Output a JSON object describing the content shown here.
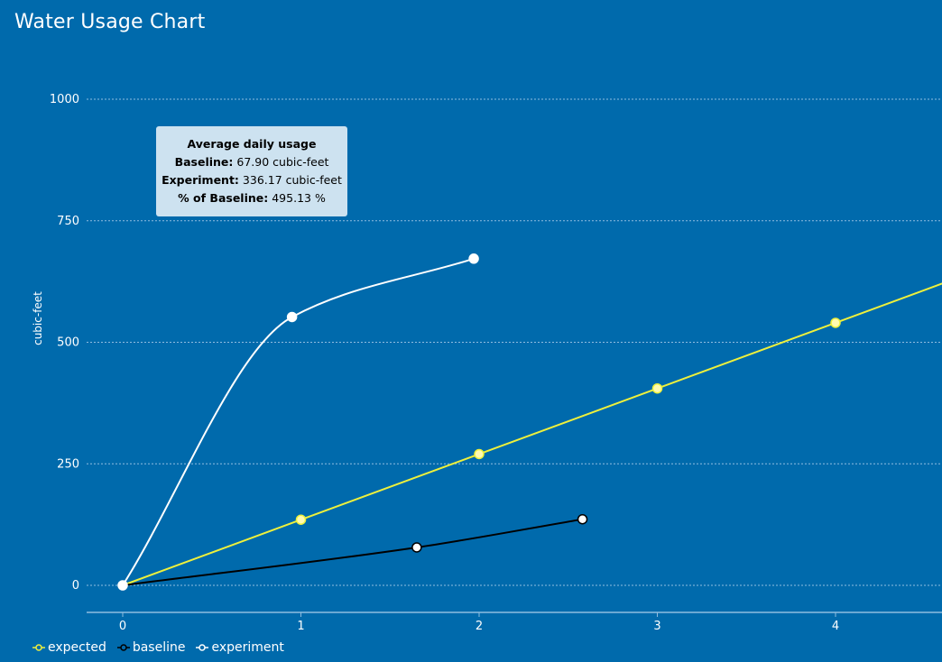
{
  "header": {
    "title": "Water Usage Chart"
  },
  "tooltip": {
    "heading": "Average daily usage",
    "rows": [
      {
        "label": "Baseline:",
        "value": "67.90 cubic-feet"
      },
      {
        "label": "Experiment:",
        "value": "336.17 cubic-feet"
      },
      {
        "label": "% of Baseline:",
        "value": "495.13 %"
      }
    ]
  },
  "legend": {
    "items": [
      {
        "label": "expected",
        "color": "#eef03c"
      },
      {
        "label": "baseline",
        "color": "#000000"
      },
      {
        "label": "experiment",
        "color": "#ffffff"
      }
    ]
  },
  "chart_data": {
    "type": "line",
    "title": "Water Usage Chart",
    "xlabel": "",
    "ylabel": "cubic-feet",
    "xlim": [
      -0.2,
      4.6
    ],
    "ylim": [
      -55,
      1000
    ],
    "x_ticks": [
      0,
      1,
      2,
      3,
      4
    ],
    "y_ticks": [
      0,
      250,
      500,
      750,
      1000
    ],
    "grid": "horizontal dotted",
    "legend_position": "bottom-left",
    "series": [
      {
        "name": "expected",
        "color": "#eef03c",
        "curve": "linear",
        "x": [
          0,
          1,
          2,
          3,
          4,
          4.6
        ],
        "y": [
          0,
          135,
          270,
          405,
          540,
          621
        ],
        "markers": [
          0,
          1,
          2,
          3,
          4
        ]
      },
      {
        "name": "baseline",
        "color": "#000000",
        "curve": "smooth",
        "x": [
          0,
          1.65,
          2.58
        ],
        "y": [
          0,
          78,
          136
        ],
        "markers": [
          0,
          1,
          2
        ]
      },
      {
        "name": "experiment",
        "color": "#ffffff",
        "curve": "smooth",
        "x": [
          0,
          0.95,
          1.97
        ],
        "y": [
          0,
          552,
          672
        ],
        "markers": [
          0,
          1,
          2
        ]
      }
    ]
  }
}
